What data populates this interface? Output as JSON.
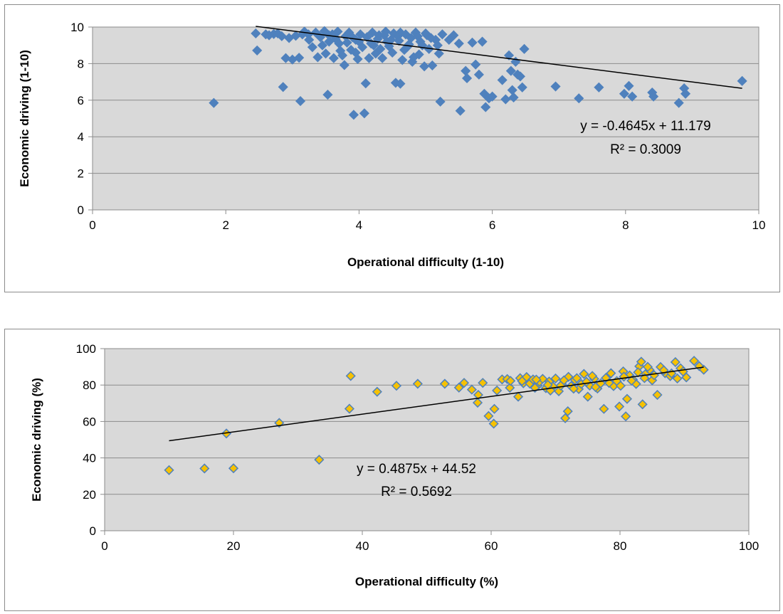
{
  "chart_data": [
    {
      "type": "scatter",
      "title": "",
      "xlabel": "Operational difficulty (1-10)",
      "ylabel": "Economic driving (1-10)",
      "xlim": [
        0,
        10
      ],
      "ylim": [
        0,
        10
      ],
      "xticks": [
        "0",
        "2",
        "4",
        "6",
        "8",
        "10"
      ],
      "yticks": [
        "0",
        "2",
        "4",
        "6",
        "8",
        "10"
      ],
      "grid": "horizontal",
      "plot_background": "#d9d9d9",
      "marker_fill": "#4f81bd",
      "marker_edge": "#4f81bd",
      "trendline": {
        "slope": -0.4645,
        "intercept": 11.179,
        "x_range": [
          2.45,
          9.75
        ]
      },
      "equation": "y = -0.4645x + 11.179",
      "r_squared": "R² = 0.3009",
      "points": [
        [
          1.82,
          5.85
        ],
        [
          2.45,
          9.65
        ],
        [
          2.47,
          8.72
        ],
        [
          2.72,
          9.62
        ],
        [
          2.78,
          9.65
        ],
        [
          2.84,
          9.5
        ],
        [
          2.86,
          6.72
        ],
        [
          2.9,
          8.3
        ],
        [
          2.95,
          9.4
        ],
        [
          3.0,
          8.22
        ],
        [
          3.05,
          9.52
        ],
        [
          3.1,
          8.32
        ],
        [
          3.12,
          5.95
        ],
        [
          3.18,
          9.75
        ],
        [
          3.24,
          9.6
        ],
        [
          3.3,
          8.9
        ],
        [
          3.35,
          9.7
        ],
        [
          3.38,
          8.35
        ],
        [
          3.42,
          9.45
        ],
        [
          3.48,
          9.78
        ],
        [
          3.5,
          8.55
        ],
        [
          3.53,
          6.3
        ],
        [
          3.55,
          9.2
        ],
        [
          3.6,
          9.6
        ],
        [
          3.62,
          8.3
        ],
        [
          3.68,
          9.75
        ],
        [
          3.7,
          9.1
        ],
        [
          3.75,
          8.45
        ],
        [
          3.78,
          7.92
        ],
        [
          3.8,
          9.5
        ],
        [
          3.85,
          9.7
        ],
        [
          3.88,
          8.75
        ],
        [
          3.92,
          5.2
        ],
        [
          3.95,
          9.3
        ],
        [
          3.98,
          8.25
        ],
        [
          4.02,
          9.6
        ],
        [
          4.05,
          8.9
        ],
        [
          4.08,
          5.28
        ],
        [
          4.1,
          6.92
        ],
        [
          4.12,
          9.45
        ],
        [
          4.15,
          8.3
        ],
        [
          4.2,
          9.7
        ],
        [
          4.22,
          9.0
        ],
        [
          4.25,
          8.55
        ],
        [
          4.3,
          9.55
        ],
        [
          4.35,
          8.3
        ],
        [
          4.4,
          9.75
        ],
        [
          4.45,
          8.95
        ],
        [
          4.48,
          9.3
        ],
        [
          4.5,
          8.6
        ],
        [
          4.55,
          6.95
        ],
        [
          4.58,
          9.5
        ],
        [
          4.62,
          6.9
        ],
        [
          4.65,
          8.2
        ],
        [
          4.7,
          9.6
        ],
        [
          4.72,
          8.9
        ],
        [
          4.78,
          9.4
        ],
        [
          4.8,
          8.1
        ],
        [
          4.85,
          9.7
        ],
        [
          4.9,
          8.5
        ],
        [
          4.92,
          9.2
        ],
        [
          4.98,
          7.85
        ],
        [
          5.02,
          9.55
        ],
        [
          5.05,
          8.8
        ],
        [
          5.1,
          7.9
        ],
        [
          5.15,
          9.3
        ],
        [
          5.2,
          8.55
        ],
        [
          5.22,
          5.92
        ],
        [
          5.25,
          9.6
        ],
        [
          5.35,
          9.3
        ],
        [
          5.42,
          9.55
        ],
        [
          5.5,
          9.1
        ],
        [
          5.52,
          5.42
        ],
        [
          5.6,
          7.6
        ],
        [
          5.62,
          7.2
        ],
        [
          5.7,
          9.15
        ],
        [
          5.75,
          7.95
        ],
        [
          5.8,
          7.4
        ],
        [
          5.85,
          9.2
        ],
        [
          5.88,
          6.35
        ],
        [
          5.9,
          5.62
        ],
        [
          5.95,
          6.1
        ],
        [
          6.0,
          6.2
        ],
        [
          6.15,
          7.1
        ],
        [
          6.2,
          6.05
        ],
        [
          6.25,
          8.45
        ],
        [
          6.28,
          7.6
        ],
        [
          6.3,
          6.55
        ],
        [
          6.32,
          6.15
        ],
        [
          6.35,
          8.1
        ],
        [
          6.38,
          7.4
        ],
        [
          6.42,
          7.3
        ],
        [
          6.45,
          6.7
        ],
        [
          6.48,
          8.8
        ],
        [
          6.95,
          6.75
        ],
        [
          7.3,
          6.1
        ],
        [
          7.6,
          6.7
        ],
        [
          7.98,
          6.35
        ],
        [
          8.05,
          6.78
        ],
        [
          8.1,
          6.2
        ],
        [
          8.4,
          6.42
        ],
        [
          8.42,
          6.2
        ],
        [
          8.8,
          5.85
        ],
        [
          8.88,
          6.65
        ],
        [
          8.9,
          6.35
        ],
        [
          9.75,
          7.05
        ],
        [
          3.25,
          9.3
        ],
        [
          3.45,
          9.0
        ],
        [
          3.65,
          9.35
        ],
        [
          3.72,
          8.7
        ],
        [
          3.82,
          9.15
        ],
        [
          3.9,
          9.45
        ],
        [
          4.0,
          9.2
        ],
        [
          4.18,
          9.1
        ],
        [
          4.28,
          9.35
        ],
        [
          4.32,
          8.8
        ],
        [
          4.42,
          9.2
        ],
        [
          4.52,
          9.65
        ],
        [
          4.6,
          9.25
        ],
        [
          4.68,
          8.75
        ],
        [
          4.75,
          9.05
        ],
        [
          4.82,
          8.35
        ],
        [
          4.88,
          9.5
        ],
        [
          4.95,
          9.0
        ],
        [
          5.0,
          9.65
        ],
        [
          5.08,
          9.4
        ],
        [
          5.18,
          9.0
        ],
        [
          3.15,
          9.6
        ],
        [
          3.55,
          9.55
        ],
        [
          3.95,
          8.6
        ],
        [
          4.38,
          9.55
        ],
        [
          4.62,
          9.7
        ],
        [
          2.6,
          9.6
        ],
        [
          2.65,
          9.55
        ]
      ]
    },
    {
      "type": "scatter",
      "title": "",
      "xlabel": "Operational difficulty (%)",
      "ylabel": "Economic driving  (%)",
      "xlim": [
        0,
        100
      ],
      "ylim": [
        0,
        100
      ],
      "xticks": [
        "0",
        "20",
        "40",
        "60",
        "80",
        "100"
      ],
      "yticks": [
        "0",
        "20",
        "40",
        "60",
        "80",
        "100"
      ],
      "grid": "horizontal",
      "plot_background": "#d9d9d9",
      "marker_fill": "#f6c100",
      "marker_edge": "#4f81bd",
      "trendline": {
        "slope": 0.4875,
        "intercept": 44.52,
        "x_range": [
          10,
          93
        ]
      },
      "equation": "y = 0.4875x + 44.52",
      "r_squared": "R² = 0.5692",
      "points": [
        [
          10.0,
          33.3
        ],
        [
          15.5,
          34.2
        ],
        [
          18.9,
          53.4
        ],
        [
          20.0,
          34.3
        ],
        [
          27.1,
          59.2
        ],
        [
          33.3,
          39.0
        ],
        [
          38.0,
          67.0
        ],
        [
          38.2,
          85.0
        ],
        [
          42.3,
          76.3
        ],
        [
          45.3,
          79.6
        ],
        [
          48.6,
          80.7
        ],
        [
          52.8,
          80.7
        ],
        [
          55.0,
          78.6
        ],
        [
          55.8,
          81.2
        ],
        [
          57.0,
          77.5
        ],
        [
          57.9,
          70.3
        ],
        [
          58.0,
          74.6
        ],
        [
          58.7,
          81.2
        ],
        [
          59.6,
          63.0
        ],
        [
          60.4,
          58.8
        ],
        [
          60.5,
          66.9
        ],
        [
          60.9,
          77.0
        ],
        [
          61.7,
          83.1
        ],
        [
          62.5,
          83.3
        ],
        [
          62.9,
          78.5
        ],
        [
          63.0,
          82.3
        ],
        [
          64.2,
          73.6
        ],
        [
          64.5,
          83.8
        ],
        [
          65.0,
          81.0
        ],
        [
          65.5,
          84.4
        ],
        [
          66.0,
          80.8
        ],
        [
          66.5,
          83.1
        ],
        [
          67.2,
          79.6
        ],
        [
          67.5,
          81.8
        ],
        [
          68.0,
          83.4
        ],
        [
          68.5,
          78.3
        ],
        [
          69.0,
          81.9
        ],
        [
          69.6,
          79.2
        ],
        [
          70.0,
          83.6
        ],
        [
          70.5,
          76.6
        ],
        [
          71.0,
          80.4
        ],
        [
          71.5,
          61.8
        ],
        [
          71.9,
          65.6
        ],
        [
          72.0,
          84.5
        ],
        [
          72.4,
          79.4
        ],
        [
          73.0,
          82.8
        ],
        [
          73.6,
          77.8
        ],
        [
          74.0,
          80.6
        ],
        [
          74.4,
          86.1
        ],
        [
          75.0,
          73.6
        ],
        [
          75.3,
          79.7
        ],
        [
          76.0,
          83.4
        ],
        [
          76.5,
          78.1
        ],
        [
          77.0,
          80.9
        ],
        [
          77.5,
          66.9
        ],
        [
          78.0,
          84.3
        ],
        [
          78.6,
          86.5
        ],
        [
          79.0,
          79.4
        ],
        [
          79.5,
          82.2
        ],
        [
          79.9,
          68.2
        ],
        [
          80.5,
          87.5
        ],
        [
          80.9,
          62.8
        ],
        [
          81.1,
          72.4
        ],
        [
          81.5,
          85.3
        ],
        [
          82.0,
          83.0
        ],
        [
          82.5,
          80.6
        ],
        [
          83.0,
          90.3
        ],
        [
          83.3,
          92.8
        ],
        [
          83.5,
          69.4
        ],
        [
          84.0,
          86.2
        ],
        [
          84.6,
          88.3
        ],
        [
          85.0,
          82.6
        ],
        [
          85.8,
          74.6
        ],
        [
          86.3,
          89.9
        ],
        [
          87.0,
          86.5
        ],
        [
          87.8,
          84.9
        ],
        [
          88.6,
          92.6
        ],
        [
          88.9,
          83.6
        ],
        [
          89.4,
          89.2
        ],
        [
          90.3,
          84.2
        ],
        [
          91.5,
          93.3
        ],
        [
          92.3,
          90.4
        ],
        [
          93.0,
          88.4
        ],
        [
          64.8,
          82.2
        ],
        [
          66.8,
          78.5
        ],
        [
          69.2,
          77.0
        ],
        [
          70.8,
          79.7
        ],
        [
          72.8,
          78.0
        ],
        [
          74.8,
          81.8
        ],
        [
          76.2,
          78.9
        ],
        [
          78.3,
          81.2
        ],
        [
          80.1,
          79.6
        ],
        [
          81.8,
          82.4
        ],
        [
          83.8,
          83.8
        ],
        [
          85.3,
          85.4
        ],
        [
          86.8,
          88.1
        ],
        [
          88.0,
          86.4
        ],
        [
          89.8,
          87.4
        ],
        [
          82.8,
          87.0
        ],
        [
          80.6,
          84.6
        ],
        [
          77.8,
          83.9
        ],
        [
          75.7,
          85.0
        ],
        [
          73.3,
          83.8
        ],
        [
          71.3,
          82.6
        ],
        [
          68.8,
          80.1
        ],
        [
          67.0,
          83.0
        ],
        [
          84.3,
          90.0
        ]
      ]
    }
  ]
}
